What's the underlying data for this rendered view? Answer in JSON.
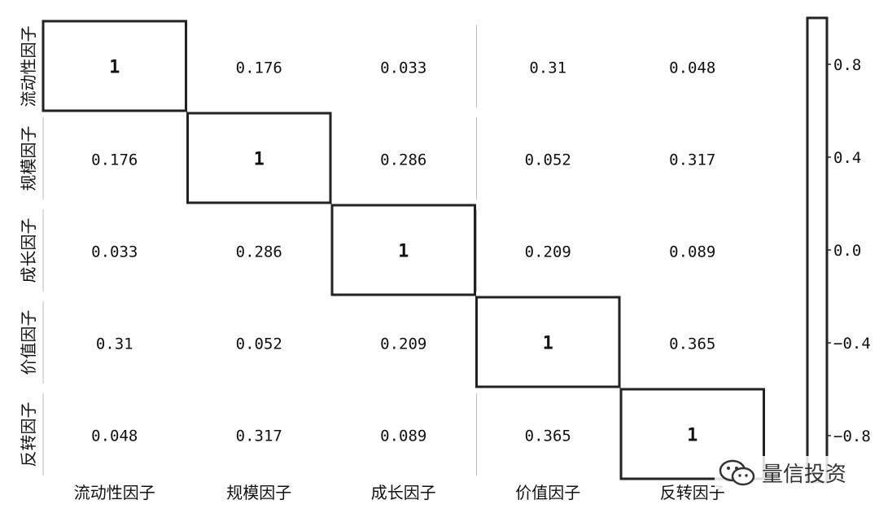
{
  "chart_data": {
    "type": "heatmap",
    "title": "",
    "row_labels": [
      "流动性因子",
      "规模因子",
      "成长因子",
      "价值因子",
      "反转因子"
    ],
    "col_labels": [
      "流动性因子",
      "规模因子",
      "成长因子",
      "价值因子",
      "反转因子"
    ],
    "values": [
      [
        1,
        0.176,
        0.033,
        0.31,
        0.048
      ],
      [
        0.176,
        1,
        0.286,
        0.052,
        0.317
      ],
      [
        0.033,
        0.286,
        1,
        0.209,
        0.089
      ],
      [
        0.31,
        0.052,
        0.209,
        1,
        0.365
      ],
      [
        0.048,
        0.317,
        0.089,
        0.365,
        1
      ]
    ],
    "cell_text": [
      [
        "1",
        "0.176",
        "0.033",
        "0.31",
        "0.048"
      ],
      [
        "0.176",
        "1",
        "0.286",
        "0.052",
        "0.317"
      ],
      [
        "0.033",
        "0.286",
        "1",
        "0.209",
        "0.089"
      ],
      [
        "0.31",
        "0.052",
        "0.209",
        "1",
        "0.365"
      ],
      [
        "0.048",
        "0.317",
        "0.089",
        "0.365",
        "1"
      ]
    ],
    "colorbar": {
      "ticks": [
        0.8,
        0.4,
        0.0,
        -0.4,
        -0.8
      ],
      "tick_labels": [
        "0.8",
        "0.4",
        "0.0",
        "−0.4",
        "−0.8"
      ],
      "range": [
        -1,
        1
      ]
    },
    "colors": {
      "cell_border": "#222222",
      "light_border": "#bbbbbb",
      "text": "#111111"
    }
  },
  "watermark": {
    "text": "量信投资",
    "icon": "wechat-icon"
  }
}
